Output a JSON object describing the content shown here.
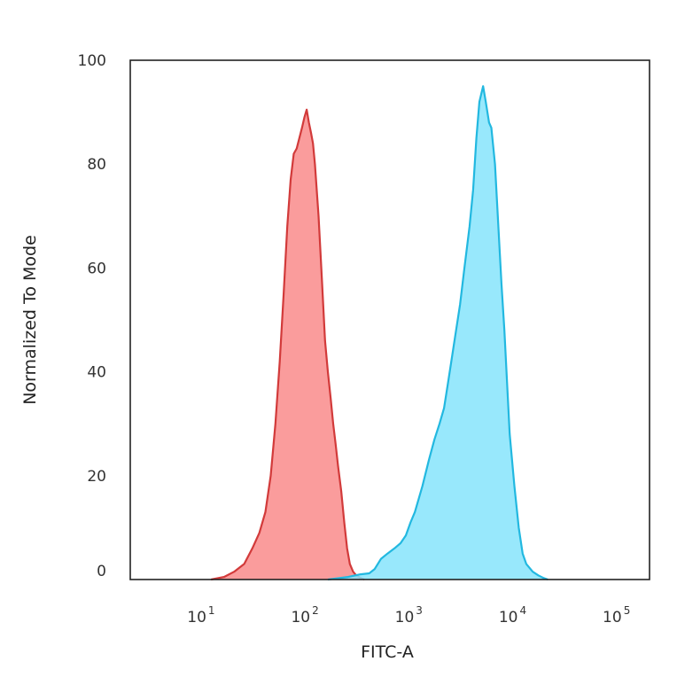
{
  "chart_data": {
    "type": "area",
    "title": "",
    "xlabel": "FITC-A",
    "ylabel": "Normalized To Mode",
    "xscale": "log",
    "xlim": [
      2,
      200000
    ],
    "ylim": [
      0,
      100
    ],
    "grid": false,
    "legend": "none",
    "y_ticks": [
      {
        "value": 0,
        "label": "0"
      },
      {
        "value": 20,
        "label": "20"
      },
      {
        "value": 40,
        "label": "40"
      },
      {
        "value": 60,
        "label": "60"
      },
      {
        "value": 80,
        "label": "80"
      },
      {
        "value": 100,
        "label": "100"
      }
    ],
    "x_ticks": [
      {
        "value": 10,
        "base": "10",
        "exp": "1"
      },
      {
        "value": 100,
        "base": "10",
        "exp": "2"
      },
      {
        "value": 1000,
        "base": "10",
        "exp": "3"
      },
      {
        "value": 10000,
        "base": "10",
        "exp": "4"
      },
      {
        "value": 100000,
        "base": "10",
        "exp": "5"
      }
    ],
    "series": [
      {
        "line_color": "#d23a3a",
        "fill_color": "#f98b8b",
        "x": [
          12,
          16,
          20,
          25,
          30,
          35,
          40,
          45,
          50,
          55,
          60,
          65,
          70,
          75,
          80,
          85,
          90,
          95,
          100,
          105,
          110,
          115,
          120,
          130,
          140,
          150,
          160,
          170,
          180,
          190,
          200,
          215,
          230,
          245,
          260,
          280,
          300,
          330,
          360
        ],
        "y": [
          0,
          0.5,
          1.5,
          3,
          6,
          9,
          13,
          20,
          30,
          42,
          55,
          68,
          77,
          82,
          83,
          85,
          87,
          89,
          90.5,
          88,
          86,
          84,
          80,
          70,
          58,
          46,
          40,
          35,
          30,
          26,
          22,
          17,
          11,
          6,
          3,
          1.5,
          0.8,
          0.3,
          0
        ]
      },
      {
        "line_color": "#22b8e0",
        "fill_color": "#86e4fb",
        "x": [
          160,
          250,
          330,
          400,
          450,
          520,
          600,
          700,
          800,
          900,
          1000,
          1100,
          1300,
          1500,
          1700,
          1900,
          2100,
          2300,
          2600,
          3000,
          3300,
          3700,
          4000,
          4300,
          4600,
          5000,
          5300,
          5700,
          6000,
          6500,
          7000,
          7500,
          8000,
          8500,
          9000,
          10000,
          11000,
          12000,
          13000,
          15000,
          17000,
          19000,
          21000
        ],
        "y": [
          0,
          0.5,
          1,
          1.2,
          2,
          4,
          5,
          6,
          7,
          8.5,
          11,
          13,
          18,
          23,
          27,
          30,
          33,
          38,
          45,
          53,
          60,
          68,
          75,
          85,
          92,
          95,
          92,
          88,
          87,
          80,
          68,
          57,
          48,
          38,
          28,
          18,
          10,
          5,
          3,
          1.5,
          0.8,
          0.3,
          0
        ]
      }
    ]
  }
}
